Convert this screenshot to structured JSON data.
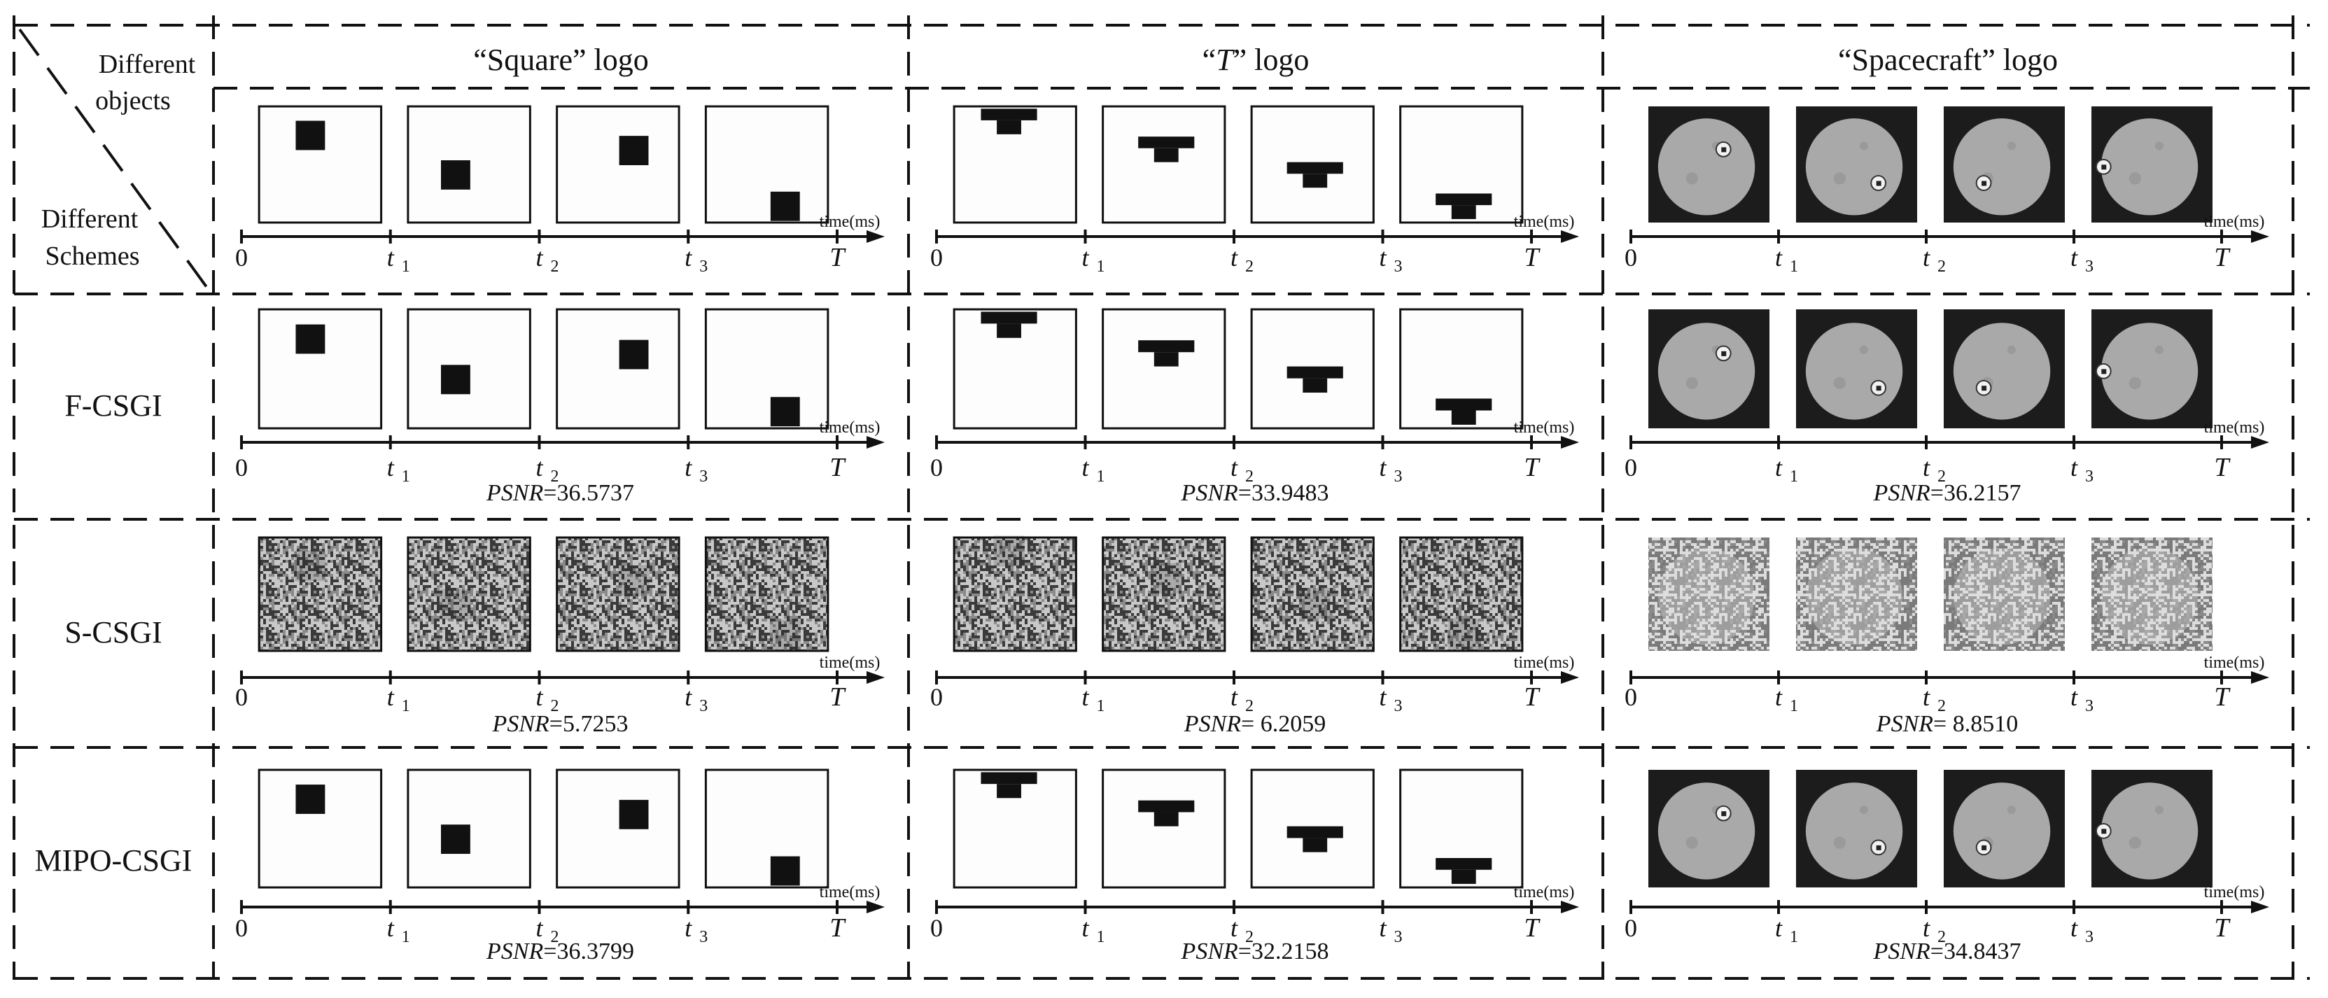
{
  "corner": {
    "objects_label": [
      "Different",
      "objects"
    ],
    "schemes_label": [
      "Different",
      "Schemes"
    ]
  },
  "columns": [
    {
      "id": "square",
      "title": "“Square” logo"
    },
    {
      "id": "t",
      "title_open": "“",
      "title_italic": "T",
      "title_close": "” logo"
    },
    {
      "id": "spacecraft",
      "title": "“Spacecraft” logo"
    }
  ],
  "rows": [
    {
      "id": "original",
      "label": "",
      "psnr": [
        "",
        "",
        ""
      ]
    },
    {
      "id": "f-csgi",
      "label": "F-CSGI",
      "psnr": [
        "36.5737",
        "33.9483",
        "36.2157"
      ]
    },
    {
      "id": "s-csgi",
      "label": "S-CSGI",
      "psnr": [
        "5.7253",
        " 6.2059",
        " 8.8510"
      ]
    },
    {
      "id": "mipo-csgi",
      "label": "MIPO-CSGI",
      "psnr": [
        "36.3799",
        "32.2158",
        "34.8437"
      ]
    }
  ],
  "psnr_prefix": "PSNR",
  "psnr_eq": "=",
  "timeline": {
    "axis_label": "time(ms)",
    "origin": "0",
    "ticks": [
      "t",
      "t",
      "t"
    ],
    "tick_subscripts": [
      "1",
      "2",
      "3"
    ],
    "end": "T"
  },
  "colors": {
    "ink": "#111111",
    "sky": "#1c1c1c",
    "planet": "#a9a9a9",
    "noise_dark": "#3a3a3a",
    "noise_light": "#c8c8c8"
  }
}
